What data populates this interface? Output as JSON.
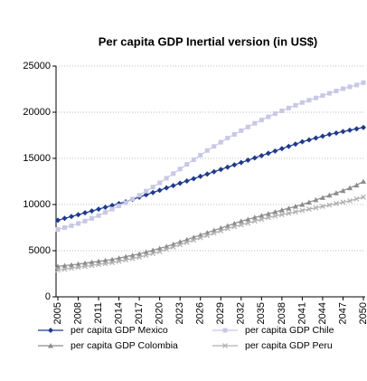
{
  "chart_data": {
    "type": "line",
    "title": "Per capita GDP Inertial version (in US$)",
    "x": [
      2005,
      2006,
      2007,
      2008,
      2009,
      2010,
      2011,
      2012,
      2013,
      2014,
      2015,
      2016,
      2017,
      2018,
      2019,
      2020,
      2021,
      2022,
      2023,
      2024,
      2025,
      2026,
      2027,
      2028,
      2029,
      2030,
      2031,
      2032,
      2033,
      2034,
      2035,
      2036,
      2037,
      2038,
      2039,
      2040,
      2041,
      2042,
      2043,
      2044,
      2045,
      2046,
      2047,
      2048,
      2049,
      2050
    ],
    "series": [
      {
        "name": "per capita GDP Mexico",
        "color": "#1f3a8c",
        "marker": "diamond",
        "values": [
          8300,
          8500,
          8700,
          8900,
          9100,
          9300,
          9500,
          9700,
          9900,
          10100,
          10300,
          10550,
          10800,
          11050,
          11300,
          11550,
          11800,
          12050,
          12300,
          12550,
          12800,
          13050,
          13300,
          13550,
          13800,
          14050,
          14300,
          14550,
          14800,
          15050,
          15300,
          15550,
          15800,
          16050,
          16300,
          16550,
          16800,
          17000,
          17200,
          17400,
          17600,
          17750,
          17900,
          18050,
          18200,
          18350
        ]
      },
      {
        "name": "per capita GDP Chile",
        "color": "#c8c8e6",
        "marker": "square",
        "values": [
          7300,
          7500,
          7700,
          7950,
          8200,
          8500,
          8800,
          9150,
          9500,
          9850,
          10200,
          10600,
          11000,
          11450,
          11900,
          12350,
          12850,
          13350,
          13850,
          14350,
          14850,
          15350,
          15850,
          16300,
          16750,
          17200,
          17600,
          18000,
          18400,
          18800,
          19150,
          19500,
          19850,
          20150,
          20450,
          20750,
          21050,
          21300,
          21550,
          21800,
          22050,
          22300,
          22550,
          22750,
          22950,
          23200
        ]
      },
      {
        "name": "per capita GDP Colombia",
        "color": "#8c8c8c",
        "marker": "triangle",
        "values": [
          3300,
          3380,
          3460,
          3550,
          3650,
          3750,
          3850,
          3950,
          4050,
          4200,
          4350,
          4500,
          4650,
          4850,
          5050,
          5250,
          5450,
          5700,
          5950,
          6200,
          6450,
          6700,
          6950,
          7200,
          7450,
          7700,
          7950,
          8200,
          8400,
          8600,
          8800,
          9000,
          9200,
          9400,
          9600,
          9800,
          10000,
          10250,
          10500,
          10750,
          11000,
          11250,
          11500,
          11800,
          12100,
          12500
        ]
      },
      {
        "name": "per capita GDP Peru",
        "color": "#b0b0b0",
        "marker": "x",
        "values": [
          2900,
          3000,
          3100,
          3200,
          3300,
          3400,
          3500,
          3600,
          3700,
          3850,
          4000,
          4150,
          4300,
          4500,
          4700,
          4900,
          5150,
          5400,
          5650,
          5900,
          6150,
          6400,
          6650,
          6900,
          7150,
          7400,
          7600,
          7800,
          8000,
          8200,
          8400,
          8600,
          8750,
          8900,
          9050,
          9200,
          9350,
          9500,
          9650,
          9800,
          9950,
          10100,
          10250,
          10400,
          10600,
          10800
        ]
      }
    ],
    "xlim": [
      2005,
      2050
    ],
    "xticks": [
      2005,
      2008,
      2011,
      2014,
      2017,
      2020,
      2023,
      2026,
      2029,
      2032,
      2035,
      2038,
      2041,
      2044,
      2047,
      2050
    ],
    "ylim": [
      0,
      25000
    ],
    "yticks": [
      0,
      5000,
      10000,
      15000,
      20000,
      25000
    ],
    "grid": true,
    "legend": "bottom"
  }
}
